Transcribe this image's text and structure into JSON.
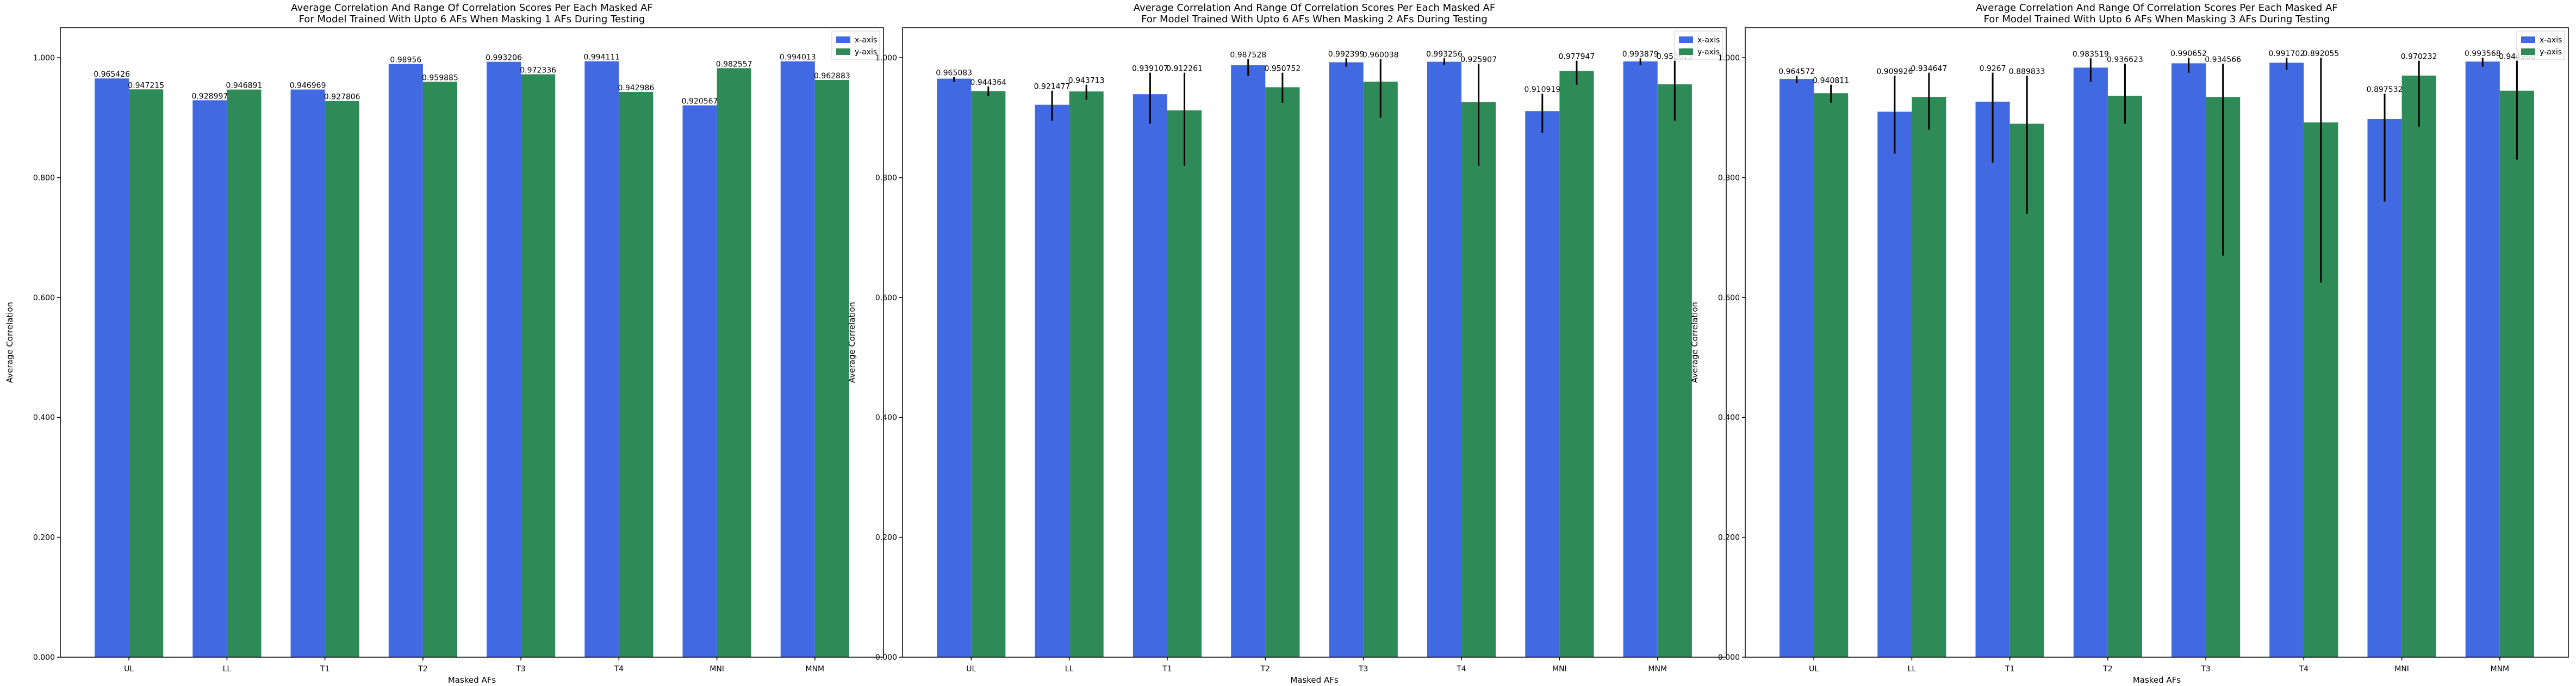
{
  "chart_data": [
    {
      "type": "bar",
      "title": "Average Correlation And Range Of Correlation Scores Per Each Masked AF",
      "subtitle": "For Model Trained With Upto 6 AFs When Masking 1 AFs During Testing",
      "xlabel": "Masked AFs",
      "ylabel": "Average Correlation",
      "ylim": [
        0,
        1.05
      ],
      "yticks": [
        "0.000",
        "0.200",
        "0.400",
        "0.600",
        "0.800",
        "1.000"
      ],
      "legend_placement": "top-right",
      "categories": [
        "UL",
        "LL",
        "T1",
        "T2",
        "T3",
        "T4",
        "MNI",
        "MNM"
      ],
      "series": [
        {
          "name": "x-axis",
          "color": "#4169e1",
          "values": [
            0.965426,
            0.928997,
            0.946969,
            0.98956,
            0.993206,
            0.994111,
            0.920567,
            0.994013
          ],
          "labels": [
            "0.965426",
            "0.928997",
            "0.946969",
            "0.98956",
            "0.993206",
            "0.994111",
            "0.920567",
            "0.994013"
          ],
          "err_low": [
            0.965426,
            0.928997,
            0.946969,
            0.98956,
            0.993206,
            0.994111,
            0.920567,
            0.994013
          ],
          "err_high": [
            0.965426,
            0.928997,
            0.946969,
            0.98956,
            0.993206,
            0.994111,
            0.920567,
            0.994013
          ]
        },
        {
          "name": "y-axis",
          "color": "#2e8b57",
          "values": [
            0.947215,
            0.946891,
            0.927806,
            0.959885,
            0.972336,
            0.942986,
            0.982557,
            0.962883
          ],
          "labels": [
            "0.947215",
            "0.946891",
            "0.927806",
            "0.959885",
            "0.972336",
            "0.942986",
            "0.982557",
            "0.962883"
          ],
          "err_low": [
            0.947215,
            0.946891,
            0.927806,
            0.959885,
            0.972336,
            0.942986,
            0.982557,
            0.962883
          ],
          "err_high": [
            0.947215,
            0.946891,
            0.927806,
            0.959885,
            0.972336,
            0.942986,
            0.982557,
            0.962883
          ]
        }
      ]
    },
    {
      "type": "bar",
      "title": "Average Correlation And Range Of Correlation Scores Per Each Masked AF",
      "subtitle": "For Model Trained With Upto 6 AFs When Masking 2 AFs During Testing",
      "xlabel": "Masked AFs",
      "ylabel": "Average Correlation",
      "ylim": [
        0,
        1.05
      ],
      "yticks": [
        "0.000",
        "0.200",
        "0.400",
        "0.600",
        "0.800",
        "1.000"
      ],
      "legend_placement": "top-right",
      "categories": [
        "UL",
        "LL",
        "T1",
        "T2",
        "T3",
        "T4",
        "MNI",
        "MNM"
      ],
      "series": [
        {
          "name": "x-axis",
          "color": "#4169e1",
          "values": [
            0.965083,
            0.921477,
            0.939107,
            0.987528,
            0.992399,
            0.993256,
            0.910919,
            0.993879
          ],
          "labels": [
            "0.965083",
            "0.921477",
            "0.939107",
            "0.987528",
            "0.992399",
            "0.993256",
            "0.910919",
            "0.993879"
          ],
          "err_low": [
            0.96,
            0.895,
            0.89,
            0.97,
            0.985,
            0.988,
            0.875,
            0.988
          ],
          "err_high": [
            0.968,
            0.945,
            0.975,
            0.998,
            0.999,
            0.999,
            0.94,
            0.999
          ]
        },
        {
          "name": "y-axis",
          "color": "#2e8b57",
          "values": [
            0.944364,
            0.943713,
            0.912261,
            0.950752,
            0.960038,
            0.925907,
            0.977947,
            0.955615
          ],
          "labels": [
            "0.944364",
            "0.943713",
            "0.912261",
            "0.950752",
            "0.960038",
            "0.925907",
            "0.977947",
            "0.955615"
          ],
          "err_low": [
            0.936,
            0.93,
            0.82,
            0.925,
            0.9,
            0.82,
            0.955,
            0.895
          ],
          "err_high": [
            0.952,
            0.955,
            0.975,
            0.975,
            0.998,
            0.99,
            0.995,
            0.995
          ]
        }
      ]
    },
    {
      "type": "bar",
      "title": "Average Correlation And Range Of Correlation Scores Per Each Masked AF",
      "subtitle": "For Model Trained With Upto 6 AFs When Masking 3 AFs During Testing",
      "xlabel": "Masked AFs",
      "ylabel": "Average Correlation",
      "ylim": [
        0,
        1.05
      ],
      "yticks": [
        "0.000",
        "0.200",
        "0.400",
        "0.600",
        "0.800",
        "1.000"
      ],
      "legend_placement": "top-right",
      "categories": [
        "UL",
        "LL",
        "T1",
        "T2",
        "T3",
        "T4",
        "MNI",
        "MNM"
      ],
      "series": [
        {
          "name": "x-axis",
          "color": "#4169e1",
          "values": [
            0.964572,
            0.909926,
            0.9267,
            0.983519,
            0.990652,
            0.991702,
            0.897532,
            0.993568
          ],
          "labels": [
            "0.964572",
            "0.909926",
            "0.9267",
            "0.983519",
            "0.990652",
            "0.991702",
            "0.897532",
            "0.993568"
          ],
          "err_low": [
            0.958,
            0.84,
            0.825,
            0.96,
            0.975,
            0.98,
            0.76,
            0.985
          ],
          "err_high": [
            0.97,
            0.97,
            0.975,
            0.999,
            1.0,
            1.0,
            0.94,
            1.0
          ]
        },
        {
          "name": "y-axis",
          "color": "#2e8b57",
          "values": [
            0.940811,
            0.934647,
            0.889833,
            0.936623,
            0.934566,
            0.892055,
            0.970232,
            0.944966
          ],
          "labels": [
            "0.940811",
            "0.934647",
            "0.889833",
            "0.936623",
            "0.934566",
            "0.892055",
            "0.970232",
            "0.944966"
          ],
          "err_low": [
            0.925,
            0.88,
            0.74,
            0.89,
            0.67,
            0.625,
            0.885,
            0.83
          ],
          "err_high": [
            0.955,
            0.975,
            0.97,
            0.99,
            0.99,
            1.0,
            0.995,
            0.995
          ]
        }
      ]
    }
  ]
}
